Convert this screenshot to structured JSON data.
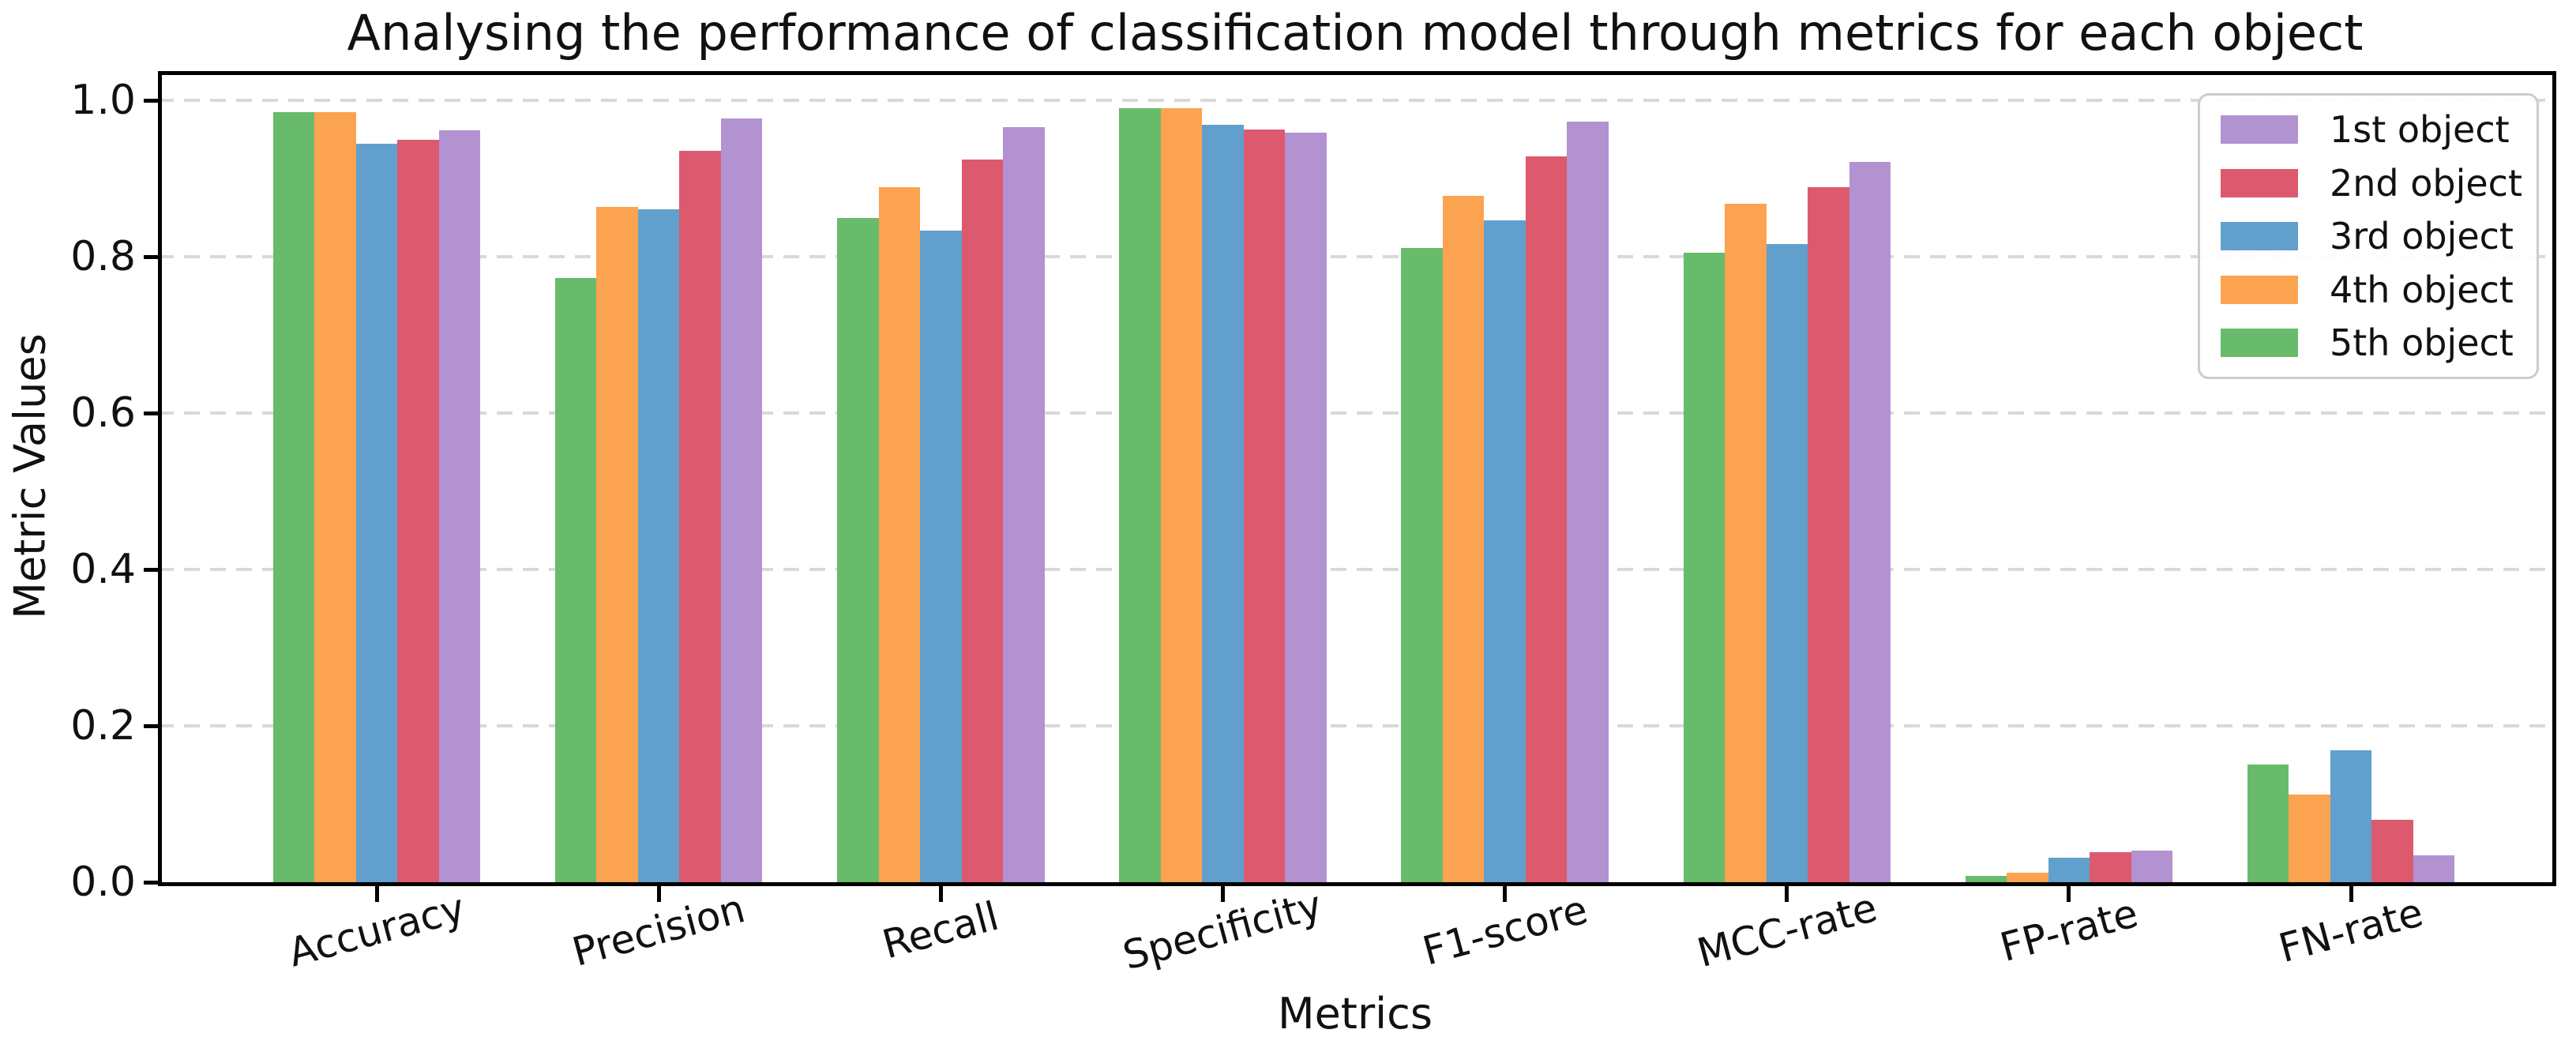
{
  "chart_data": {
    "type": "bar",
    "title": "Analysing the performance of classification model through metrics for each object",
    "xlabel": "Metrics",
    "ylabel": "Metric Values",
    "categories": [
      "Accuracy",
      "Precision",
      "Recall",
      "Specificity",
      "F1-score",
      "MCC-rate",
      "FP-rate",
      "FN-rate"
    ],
    "series": [
      {
        "name": "1st object",
        "color": "#b292d0",
        "values": [
          0.962,
          0.977,
          0.966,
          0.959,
          0.973,
          0.921,
          0.04,
          0.034
        ]
      },
      {
        "name": "2nd object",
        "color": "#dd5a6e",
        "values": [
          0.949,
          0.935,
          0.924,
          0.963,
          0.928,
          0.889,
          0.038,
          0.08
        ]
      },
      {
        "name": "3rd object",
        "color": "#61a0cc",
        "values": [
          0.944,
          0.861,
          0.833,
          0.969,
          0.846,
          0.816,
          0.031,
          0.169
        ]
      },
      {
        "name": "4th object",
        "color": "#fca351",
        "values": [
          0.985,
          0.864,
          0.889,
          0.99,
          0.878,
          0.868,
          0.012,
          0.112
        ]
      },
      {
        "name": "5th object",
        "color": "#68bb6b",
        "values": [
          0.985,
          0.773,
          0.85,
          0.99,
          0.811,
          0.805,
          0.008,
          0.151
        ]
      }
    ],
    "yticks": [
      "0.0",
      "0.2",
      "0.4",
      "0.6",
      "0.8",
      "1.0"
    ],
    "ylim": [
      0,
      1.04
    ],
    "grid": "horizontal dashed",
    "legend_position": "upper right",
    "bar_group_order_left_to_right": [
      "5th object",
      "4th object",
      "3rd object",
      "2nd object",
      "1st object"
    ]
  }
}
